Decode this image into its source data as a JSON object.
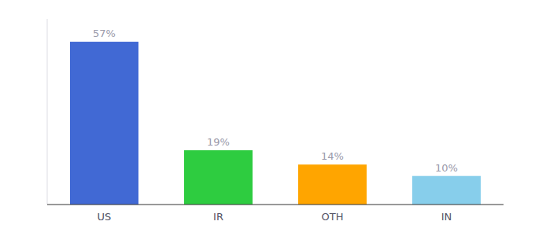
{
  "chart_data": {
    "type": "bar",
    "categories": [
      "US",
      "IR",
      "OTH",
      "IN"
    ],
    "values": [
      57,
      19,
      14,
      10
    ],
    "value_labels": [
      "57%",
      "19%",
      "14%",
      "10%"
    ],
    "colors": [
      "#4169D4",
      "#2ECC40",
      "#FFA500",
      "#87CEEB"
    ],
    "ylim": [
      0,
      65
    ],
    "data_labels": true,
    "tick_labels": "x"
  }
}
